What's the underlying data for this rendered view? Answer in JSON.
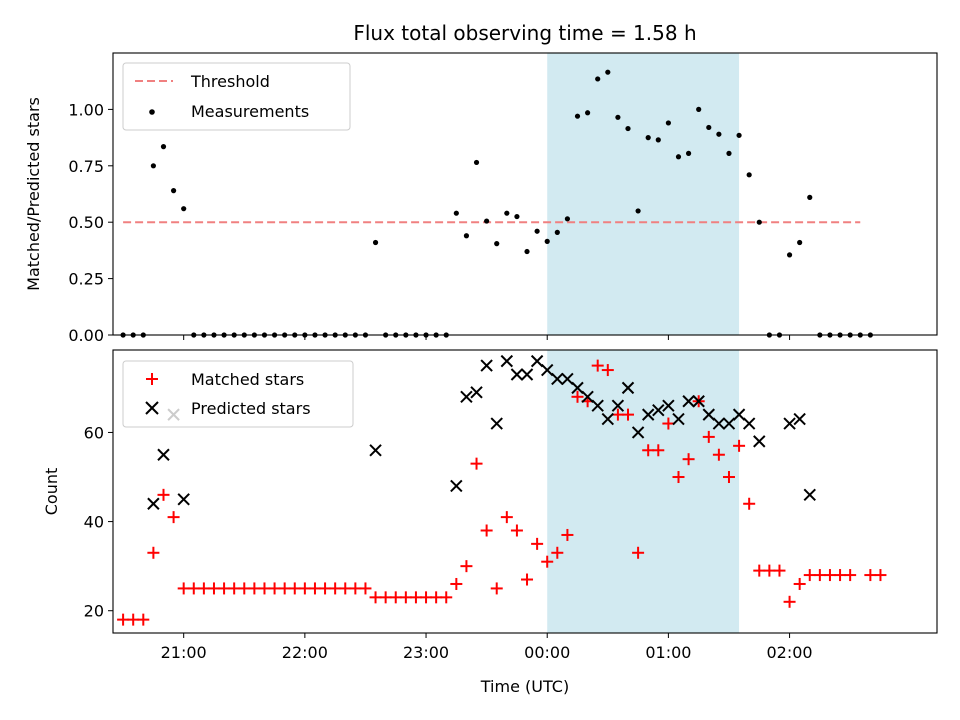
{
  "chart_data": {
    "title": "Flux total observing time = 1.58 h",
    "xlabel": "Time (UTC)",
    "x_ticks": [
      {
        "label": "21:00",
        "hour": 21
      },
      {
        "label": "22:00",
        "hour": 22
      },
      {
        "label": "23:00",
        "hour": 23
      },
      {
        "label": "00:00",
        "hour": 24
      },
      {
        "label": "01:00",
        "hour": 25
      },
      {
        "label": "02:00",
        "hour": 26
      }
    ],
    "xlim": [
      "20:25",
      "03:13"
    ],
    "shaded_interval": {
      "start": "00:00",
      "end": "01:35",
      "color": "#add8e6"
    },
    "top": {
      "type": "scatter",
      "ylabel": "Matched/Predicted stars",
      "ylim": [
        0,
        1.25
      ],
      "y_ticks": [
        "0.00",
        "0.25",
        "0.50",
        "0.75",
        "1.00"
      ],
      "threshold": {
        "name": "Threshold",
        "value": 0.5,
        "x_start": "20:30",
        "x_end": "02:35",
        "color": "#f08080"
      },
      "series": [
        {
          "name": "Measurements",
          "color": "#000000",
          "marker": "dot",
          "points": [
            [
              "20:30",
              0
            ],
            [
              "20:35",
              0
            ],
            [
              "20:40",
              0
            ],
            [
              "20:45",
              0.75
            ],
            [
              "20:50",
              0.835
            ],
            [
              "20:55",
              0.64
            ],
            [
              "21:00",
              0.56
            ],
            [
              "21:05",
              0
            ],
            [
              "21:10",
              0
            ],
            [
              "21:15",
              0
            ],
            [
              "21:20",
              0
            ],
            [
              "21:25",
              0
            ],
            [
              "21:30",
              0
            ],
            [
              "21:35",
              0
            ],
            [
              "21:40",
              0
            ],
            [
              "21:45",
              0
            ],
            [
              "21:50",
              0
            ],
            [
              "21:55",
              0
            ],
            [
              "22:00",
              0
            ],
            [
              "22:05",
              0
            ],
            [
              "22:10",
              0
            ],
            [
              "22:15",
              0
            ],
            [
              "22:20",
              0
            ],
            [
              "22:25",
              0
            ],
            [
              "22:30",
              0
            ],
            [
              "22:35",
              0.41
            ],
            [
              "22:40",
              0
            ],
            [
              "22:45",
              0
            ],
            [
              "22:50",
              0
            ],
            [
              "22:55",
              0
            ],
            [
              "23:00",
              0
            ],
            [
              "23:05",
              0
            ],
            [
              "23:10",
              0
            ],
            [
              "23:15",
              0.54
            ],
            [
              "23:20",
              0.44
            ],
            [
              "23:25",
              0.765
            ],
            [
              "23:30",
              0.505
            ],
            [
              "23:35",
              0.405
            ],
            [
              "23:40",
              0.54
            ],
            [
              "23:45",
              0.525
            ],
            [
              "23:50",
              0.37
            ],
            [
              "23:55",
              0.46
            ],
            [
              "00:00",
              0.415
            ],
            [
              "00:05",
              0.455
            ],
            [
              "00:10",
              0.515
            ],
            [
              "00:15",
              0.97
            ],
            [
              "00:20",
              0.985
            ],
            [
              "00:25",
              1.135
            ],
            [
              "00:30",
              1.165
            ],
            [
              "00:35",
              0.965
            ],
            [
              "00:40",
              0.915
            ],
            [
              "00:45",
              0.55
            ],
            [
              "00:50",
              0.875
            ],
            [
              "00:55",
              0.865
            ],
            [
              "01:00",
              0.94
            ],
            [
              "01:05",
              0.79
            ],
            [
              "01:10",
              0.805
            ],
            [
              "01:15",
              1.0
            ],
            [
              "01:20",
              0.92
            ],
            [
              "01:25",
              0.89
            ],
            [
              "01:30",
              0.805
            ],
            [
              "01:35",
              0.885
            ],
            [
              "01:40",
              0.71
            ],
            [
              "01:45",
              0.5
            ],
            [
              "01:50",
              0
            ],
            [
              "01:55",
              0
            ],
            [
              "02:00",
              0.355
            ],
            [
              "02:05",
              0.41
            ],
            [
              "02:10",
              0.61
            ],
            [
              "02:15",
              0
            ],
            [
              "02:20",
              0
            ],
            [
              "02:25",
              0
            ],
            [
              "02:30",
              0
            ],
            [
              "02:35",
              0
            ],
            [
              "02:40",
              0
            ]
          ]
        }
      ]
    },
    "bottom": {
      "type": "scatter",
      "ylabel": "Count",
      "ylim": [
        15,
        78.5
      ],
      "y_ticks": [
        "20",
        "40",
        "60"
      ],
      "series": [
        {
          "name": "Matched stars",
          "color": "#ff0000",
          "marker": "plus",
          "points": [
            [
              "20:30",
              18
            ],
            [
              "20:35",
              18
            ],
            [
              "20:40",
              18
            ],
            [
              "20:45",
              33
            ],
            [
              "20:50",
              46
            ],
            [
              "20:55",
              41
            ],
            [
              "21:00",
              25
            ],
            [
              "21:05",
              25
            ],
            [
              "21:10",
              25
            ],
            [
              "21:15",
              25
            ],
            [
              "21:20",
              25
            ],
            [
              "21:25",
              25
            ],
            [
              "21:30",
              25
            ],
            [
              "21:35",
              25
            ],
            [
              "21:40",
              25
            ],
            [
              "21:45",
              25
            ],
            [
              "21:50",
              25
            ],
            [
              "21:55",
              25
            ],
            [
              "22:00",
              25
            ],
            [
              "22:05",
              25
            ],
            [
              "22:10",
              25
            ],
            [
              "22:15",
              25
            ],
            [
              "22:20",
              25
            ],
            [
              "22:25",
              25
            ],
            [
              "22:30",
              25
            ],
            [
              "22:35",
              23
            ],
            [
              "22:40",
              23
            ],
            [
              "22:45",
              23
            ],
            [
              "22:50",
              23
            ],
            [
              "22:55",
              23
            ],
            [
              "23:00",
              23
            ],
            [
              "23:05",
              23
            ],
            [
              "23:10",
              23
            ],
            [
              "23:15",
              26
            ],
            [
              "23:20",
              30
            ],
            [
              "23:25",
              53
            ],
            [
              "23:30",
              38
            ],
            [
              "23:35",
              25
            ],
            [
              "23:40",
              41
            ],
            [
              "23:45",
              38
            ],
            [
              "23:50",
              27
            ],
            [
              "23:55",
              35
            ],
            [
              "00:00",
              31
            ],
            [
              "00:05",
              33
            ],
            [
              "00:10",
              37
            ],
            [
              "00:15",
              68
            ],
            [
              "00:20",
              67
            ],
            [
              "00:25",
              75
            ],
            [
              "00:30",
              74
            ],
            [
              "00:35",
              64
            ],
            [
              "00:40",
              64
            ],
            [
              "00:45",
              33
            ],
            [
              "00:50",
              56
            ],
            [
              "00:55",
              56
            ],
            [
              "01:00",
              62
            ],
            [
              "01:05",
              50
            ],
            [
              "01:10",
              54
            ],
            [
              "01:15",
              67
            ],
            [
              "01:20",
              59
            ],
            [
              "01:25",
              55
            ],
            [
              "01:30",
              50
            ],
            [
              "01:35",
              57
            ],
            [
              "01:40",
              44
            ],
            [
              "01:45",
              29
            ],
            [
              "01:50",
              29
            ],
            [
              "01:55",
              29
            ],
            [
              "02:00",
              22
            ],
            [
              "02:05",
              26
            ],
            [
              "02:10",
              28
            ],
            [
              "02:15",
              28
            ],
            [
              "02:20",
              28
            ],
            [
              "02:25",
              28
            ],
            [
              "02:30",
              28
            ],
            [
              "02:40",
              28
            ],
            [
              "02:45",
              28
            ]
          ]
        },
        {
          "name": "Predicted stars",
          "color": "#000000",
          "marker": "x",
          "points": [
            [
              "20:45",
              44
            ],
            [
              "20:50",
              55
            ],
            [
              "20:55",
              64
            ],
            [
              "21:00",
              45
            ],
            [
              "22:35",
              56
            ],
            [
              "23:15",
              48
            ],
            [
              "23:20",
              68
            ],
            [
              "23:25",
              69
            ],
            [
              "23:30",
              75
            ],
            [
              "23:35",
              62
            ],
            [
              "23:40",
              76
            ],
            [
              "23:45",
              73
            ],
            [
              "23:50",
              73
            ],
            [
              "23:55",
              76
            ],
            [
              "00:00",
              74
            ],
            [
              "00:05",
              72
            ],
            [
              "00:10",
              72
            ],
            [
              "00:15",
              70
            ],
            [
              "00:20",
              68
            ],
            [
              "00:25",
              66
            ],
            [
              "00:30",
              63
            ],
            [
              "00:35",
              66
            ],
            [
              "00:40",
              70
            ],
            [
              "00:45",
              60
            ],
            [
              "00:50",
              64
            ],
            [
              "00:55",
              65
            ],
            [
              "01:00",
              66
            ],
            [
              "01:05",
              63
            ],
            [
              "01:10",
              67
            ],
            [
              "01:15",
              67
            ],
            [
              "01:20",
              64
            ],
            [
              "01:25",
              62
            ],
            [
              "01:30",
              62
            ],
            [
              "01:35",
              64
            ],
            [
              "01:40",
              62
            ],
            [
              "01:45",
              58
            ],
            [
              "02:00",
              62
            ],
            [
              "02:05",
              63
            ],
            [
              "02:10",
              46
            ]
          ]
        }
      ]
    }
  }
}
